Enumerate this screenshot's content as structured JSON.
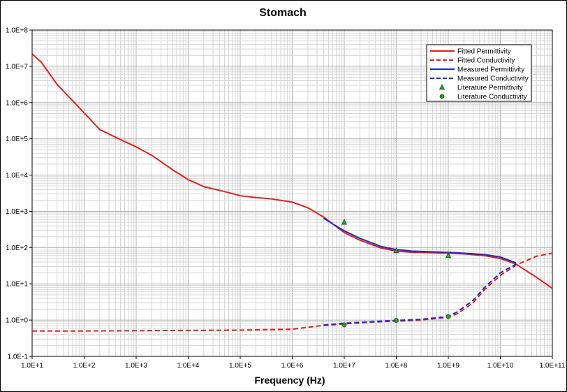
{
  "chart_data": {
    "type": "line",
    "title": "Stomach",
    "xlabel": "Frequency (Hz)",
    "ylabel": "",
    "xscale": "log",
    "yscale": "log",
    "xlim": [
      10,
      100000000000
    ],
    "ylim": [
      0.1,
      100000000
    ],
    "grid": true,
    "legend_position": "top-right",
    "x_tick_labels": [
      "1.0E+1",
      "1.0E+2",
      "1.0E+3",
      "1.0E+4",
      "1.0E+5",
      "1.0E+6",
      "1.0E+7",
      "1.0E+8",
      "1.0E+9",
      "1.0E+10",
      "1.0E+11"
    ],
    "y_tick_labels": [
      "1.0E-1",
      "1.0E+0",
      "1.0E+1",
      "1.0E+2",
      "1.0E+3",
      "1.0E+4",
      "1.0E+5",
      "1.0E+6",
      "1.0E+7",
      "1.0E+8"
    ],
    "series": [
      {
        "name": "Fitted Permittivity",
        "style": "solid",
        "color": "#e02020",
        "x": [
          10,
          15,
          30,
          100,
          200,
          500,
          1000,
          2000,
          5000,
          10000,
          20000,
          50000,
          100000,
          200000,
          400000,
          1000000,
          2000000,
          4000000,
          10000000,
          20000000,
          50000000,
          100000000,
          200000000,
          500000000,
          1000000000,
          2000000000,
          5000000000,
          10000000000,
          20000000000,
          50000000000,
          100000000000
        ],
        "y": [
          22000000,
          13000000,
          3200000,
          520000,
          180000,
          95000,
          60000,
          35000,
          14000,
          7500,
          4800,
          3500,
          2700,
          2400,
          2200,
          1800,
          1250,
          700,
          260,
          160,
          98,
          80,
          74,
          72,
          70,
          67,
          60,
          50,
          35,
          15,
          7.5
        ]
      },
      {
        "name": "Fitted Conductivity",
        "style": "dashed",
        "color": "#e02020",
        "x": [
          10,
          100,
          1000,
          10000,
          100000,
          1000000,
          3000000,
          10000000,
          30000000,
          100000000,
          300000000,
          1000000000,
          1500000000,
          3000000000,
          5000000000,
          10000000000,
          20000000000,
          50000000000,
          100000000000
        ],
        "y": [
          0.5,
          0.5,
          0.51,
          0.52,
          0.53,
          0.56,
          0.68,
          0.79,
          0.87,
          0.94,
          1.0,
          1.2,
          1.5,
          3.0,
          7.0,
          17,
          33,
          58,
          70
        ]
      },
      {
        "name": "Measured Permittivity",
        "style": "solid",
        "color": "#1a2ad0",
        "x": [
          4000000,
          6000000,
          10000000,
          20000000,
          50000000,
          100000000,
          200000000,
          500000000,
          1000000000,
          2000000000,
          5000000000,
          10000000000,
          20000000000
        ],
        "y": [
          650,
          450,
          290,
          180,
          108,
          88,
          80,
          76,
          73,
          70,
          64,
          55,
          38
        ]
      },
      {
        "name": "Measured Conductivity",
        "style": "dashed",
        "color": "#1a2ad0",
        "x": [
          4000000,
          10000000,
          30000000,
          100000000,
          300000000,
          1000000000,
          1500000000,
          3000000000,
          5000000000,
          10000000000,
          20000000000
        ],
        "y": [
          0.73,
          0.82,
          0.9,
          0.98,
          1.05,
          1.25,
          1.7,
          3.5,
          8.0,
          20,
          35
        ]
      },
      {
        "name": "Literature Permittivity",
        "marker": "triangle",
        "color": "#2aa02a",
        "x": [
          10000000,
          100000000,
          1000000000
        ],
        "y": [
          500,
          82,
          60
        ]
      },
      {
        "name": "Literature Conductivity",
        "marker": "circle",
        "color": "#2aa02a",
        "x": [
          10000000,
          100000000,
          1000000000
        ],
        "y": [
          0.74,
          0.98,
          1.25
        ]
      }
    ]
  }
}
